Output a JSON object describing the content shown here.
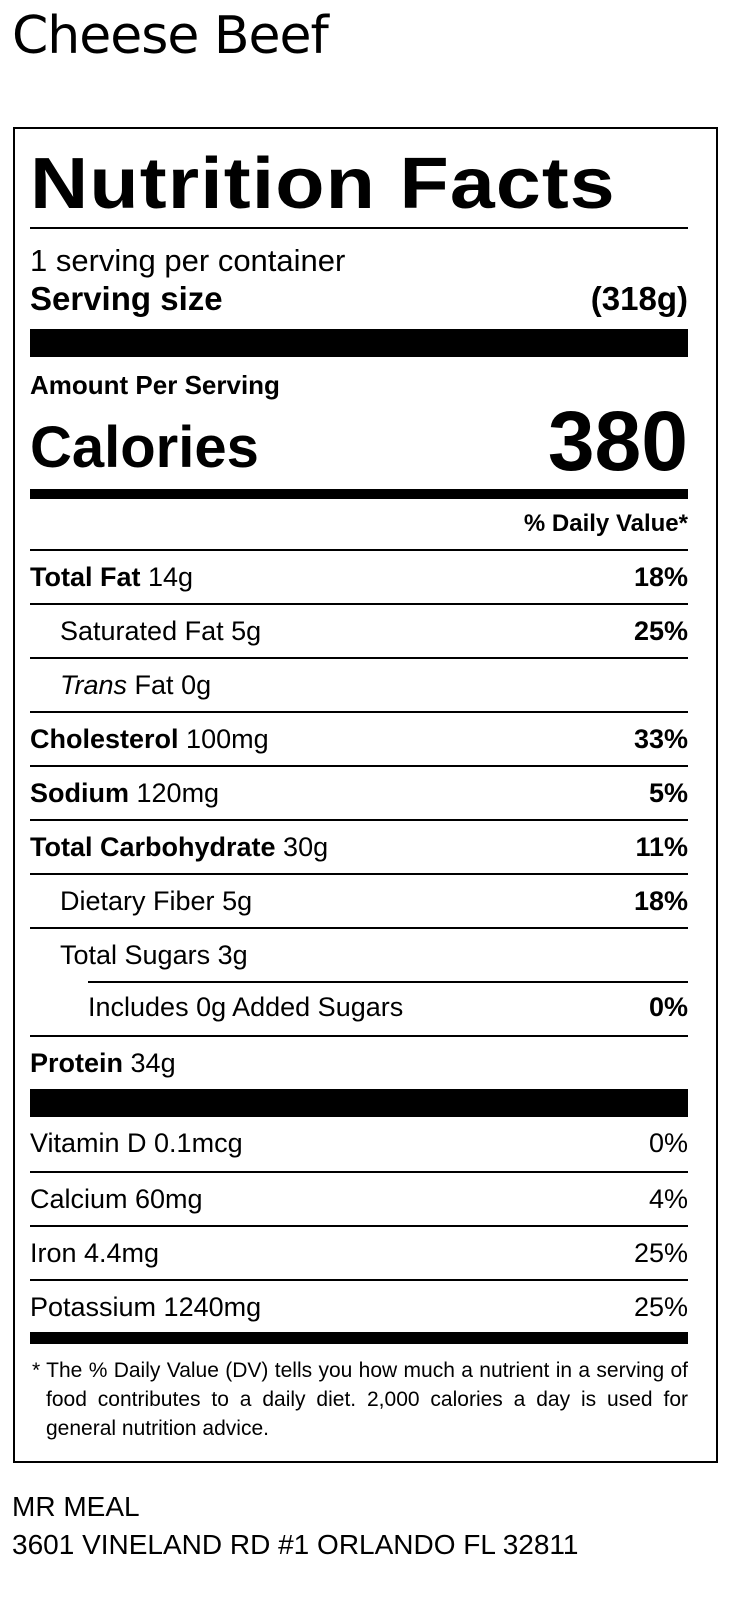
{
  "product_name": "Cheese Beef",
  "label": {
    "heading": "Nutrition Facts",
    "servings": "1 serving per container",
    "serving_size_label": "Serving size",
    "serving_size_value": "(318g)",
    "amount_per_serving": "Amount Per Serving",
    "calories_label": "Calories",
    "calories_value": "380",
    "dv_header": "% Daily Value*",
    "nutrients": [
      {
        "name": "Total Fat",
        "amount": "14g",
        "dv": "18%"
      },
      {
        "name": "Saturated Fat",
        "amount": "5g",
        "dv": "25%"
      },
      {
        "name": "Trans",
        "name_suffix": "Fat",
        "amount": "0g",
        "dv": ""
      },
      {
        "name": "Cholesterol",
        "amount": "100mg",
        "dv": "33%"
      },
      {
        "name": "Sodium",
        "amount": "120mg",
        "dv": "5%"
      },
      {
        "name": "Total Carbohydrate",
        "amount": "30g",
        "dv": "11%"
      },
      {
        "name": "Dietary Fiber",
        "amount": "5g",
        "dv": "18%"
      },
      {
        "name": "Total Sugars",
        "amount": "3g",
        "dv": ""
      },
      {
        "name": "Includes 0g Added Sugars",
        "amount": "",
        "dv": "0%"
      },
      {
        "name": "Protein",
        "amount": "34g",
        "dv": ""
      }
    ],
    "vitamins": [
      {
        "text": "Vitamin D 0.1mcg",
        "dv": "0%"
      },
      {
        "text": "Calcium 60mg",
        "dv": "4%"
      },
      {
        "text": "Iron 4.4mg",
        "dv": "25%"
      },
      {
        "text": "Potassium 1240mg",
        "dv": "25%"
      }
    ],
    "footnote": "* The % Daily Value (DV) tells you how much a nutrient in a serving of food contributes to a daily diet. 2,000 calories a day is used for general nutrition advice."
  },
  "manufacturer": {
    "name": "MR MEAL",
    "address": "3601 VINELAND RD #1 ORLANDO FL 32811"
  }
}
